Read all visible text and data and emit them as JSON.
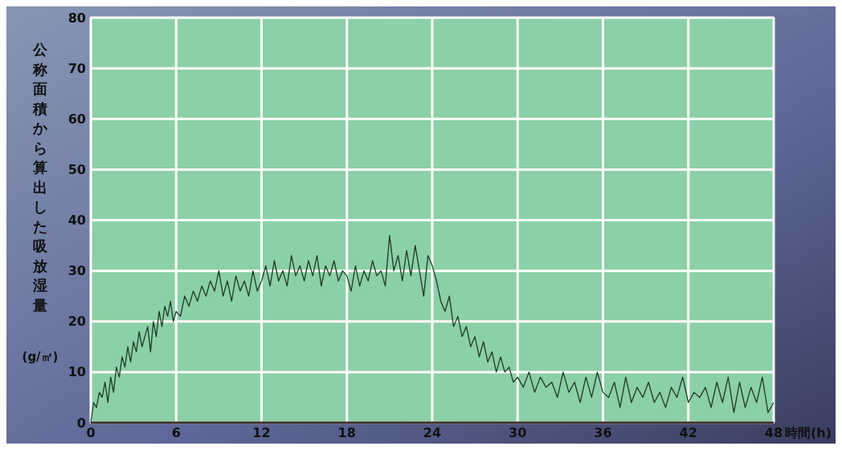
{
  "chart_data": {
    "type": "line",
    "xlabel": "時間(h)",
    "ylabel": "公称面積から算出した吸放湿量(g/㎡)",
    "xlim": [
      0,
      48
    ],
    "ylim": [
      0,
      80
    ],
    "xticks": [
      0,
      6,
      12,
      18,
      24,
      30,
      36,
      42,
      48
    ],
    "yticks": [
      0,
      10,
      20,
      30,
      40,
      50,
      60,
      70,
      80
    ],
    "grid": true,
    "marker": "none",
    "line_style": "solid",
    "series": [
      {
        "color": "#1f3a2a",
        "x": [
          0,
          0.2,
          0.4,
          0.6,
          0.8,
          1,
          1.2,
          1.4,
          1.6,
          1.8,
          2,
          2.2,
          2.4,
          2.6,
          2.8,
          3,
          3.2,
          3.4,
          3.6,
          3.8,
          4,
          4.2,
          4.4,
          4.6,
          4.8,
          5,
          5.2,
          5.4,
          5.6,
          5.8,
          6,
          6.3,
          6.6,
          6.9,
          7.2,
          7.5,
          7.8,
          8.1,
          8.4,
          8.7,
          9,
          9.3,
          9.6,
          9.9,
          10.2,
          10.5,
          10.8,
          11.1,
          11.4,
          11.7,
          12,
          12.3,
          12.6,
          12.9,
          13.2,
          13.5,
          13.8,
          14.1,
          14.4,
          14.7,
          15,
          15.3,
          15.6,
          15.9,
          16.2,
          16.5,
          16.8,
          17.1,
          17.4,
          17.7,
          18,
          18.3,
          18.6,
          18.9,
          19.2,
          19.5,
          19.8,
          20.1,
          20.4,
          20.7,
          21,
          21.3,
          21.6,
          21.9,
          22.2,
          22.5,
          22.8,
          23.1,
          23.4,
          23.7,
          24,
          24.3,
          24.6,
          24.9,
          25.2,
          25.5,
          25.8,
          26.1,
          26.4,
          26.7,
          27,
          27.3,
          27.6,
          27.9,
          28.2,
          28.5,
          28.8,
          29.1,
          29.4,
          29.7,
          30,
          30.4,
          30.8,
          31.2,
          31.6,
          32,
          32.4,
          32.8,
          33.2,
          33.6,
          34,
          34.4,
          34.8,
          35.2,
          35.6,
          36,
          36.4,
          36.8,
          37.2,
          37.6,
          38,
          38.4,
          38.8,
          39.2,
          39.6,
          40,
          40.4,
          40.8,
          41.2,
          41.6,
          42,
          42.4,
          42.8,
          43.2,
          43.6,
          44,
          44.4,
          44.8,
          45.2,
          45.6,
          46,
          46.4,
          46.8,
          47.2,
          47.6,
          48
        ],
        "values": [
          0,
          4,
          3,
          6,
          5,
          8,
          4,
          9,
          6,
          11,
          9,
          13,
          11,
          15,
          12,
          16,
          14,
          18,
          15,
          17,
          19,
          14,
          20,
          17,
          22,
          19,
          23,
          21,
          24,
          20,
          22,
          21,
          25,
          23,
          26,
          24,
          27,
          25,
          28,
          26,
          30,
          25,
          28,
          24,
          29,
          26,
          28,
          25,
          30,
          26,
          28,
          31,
          27,
          32,
          28,
          30,
          27,
          33,
          29,
          31,
          28,
          32,
          29,
          33,
          27,
          31,
          29,
          32,
          28,
          30,
          29,
          26,
          31,
          27,
          30,
          28,
          32,
          29,
          30,
          27,
          37,
          30,
          33,
          28,
          34,
          29,
          35,
          30,
          25,
          33,
          31,
          28,
          24,
          22,
          25,
          19,
          21,
          17,
          19,
          15,
          17,
          13,
          16,
          12,
          14,
          10,
          13,
          10,
          11,
          8,
          9,
          7,
          10,
          6,
          9,
          7,
          8,
          5,
          10,
          6,
          8,
          4,
          9,
          5,
          10,
          6,
          5,
          8,
          3,
          9,
          4,
          7,
          5,
          8,
          4,
          6,
          3,
          7,
          5,
          9,
          4,
          6,
          5,
          7,
          3,
          8,
          4,
          9,
          2,
          8,
          3,
          7,
          4,
          9,
          2,
          4
        ]
      }
    ]
  }
}
